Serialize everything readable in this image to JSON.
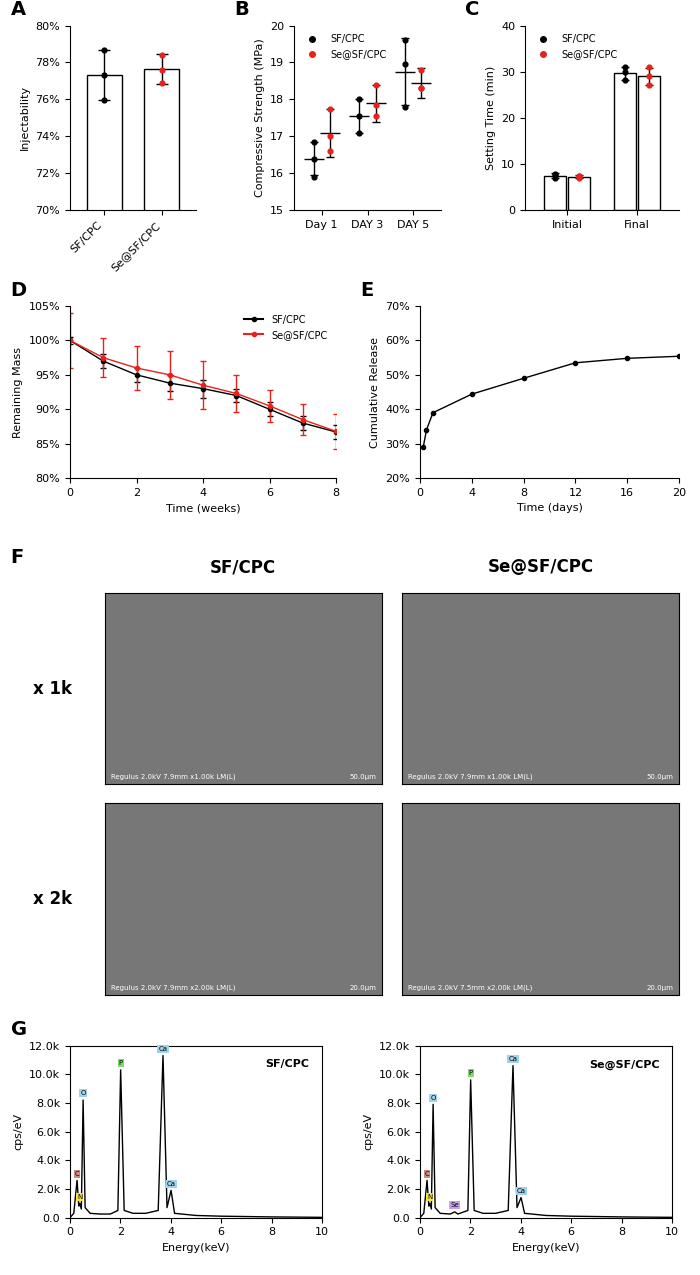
{
  "chart_data": [
    {
      "panel": "A",
      "type": "bar",
      "y_label": "Injectability",
      "categories": [
        "SF/CPC",
        "Se@SF/CPC"
      ],
      "values": [
        77.3,
        77.65
      ],
      "errors": [
        1.35,
        0.8
      ],
      "points": [
        [
          78.7,
          77.3,
          75.95
        ],
        [
          78.4,
          77.6,
          76.9
        ]
      ],
      "colors": [
        "#000000",
        "#e8221b"
      ],
      "ylim": [
        70,
        80
      ],
      "yticks": [
        {
          "value": 70,
          "label": "70%"
        },
        {
          "value": 72,
          "label": "72%"
        },
        {
          "value": 74,
          "label": "74%"
        },
        {
          "value": 76,
          "label": "76%"
        },
        {
          "value": 78,
          "label": "78%"
        },
        {
          "value": 80,
          "label": "80%"
        }
      ]
    },
    {
      "panel": "B",
      "type": "scatter",
      "y_label": "Compressive Strength (MPa)",
      "legend": "upper left",
      "categories": [
        "Day 1",
        "DAY 3",
        "DAY 5"
      ],
      "series": [
        {
          "name": "SF/CPC",
          "color": "#000000",
          "values": [
            16.4,
            17.55,
            18.75
          ],
          "errors": [
            0.45,
            0.45,
            0.9
          ],
          "points": [
            [
              16.85,
              16.4,
              15.9
            ],
            [
              18.0,
              17.55,
              17.1
            ],
            [
              19.6,
              18.95,
              17.8
            ]
          ]
        },
        {
          "name": "Se@SF/CPC",
          "color": "#e8221b",
          "values": [
            17.1,
            17.9,
            18.45
          ],
          "errors": [
            0.65,
            0.5,
            0.4
          ],
          "points": [
            [
              17.75,
              17.0,
              16.6
            ],
            [
              18.4,
              17.85,
              17.55
            ],
            [
              18.8,
              18.3,
              18.3
            ]
          ]
        }
      ],
      "ylim": [
        15,
        20
      ],
      "yticks": [
        15,
        16,
        17,
        18,
        19,
        20
      ]
    },
    {
      "panel": "C",
      "type": "bar",
      "y_label": "Setting Time (min)",
      "legend": "upper left",
      "categories": [
        "Initial",
        "Final"
      ],
      "series": [
        {
          "name": "SF/CPC",
          "color": "#000000",
          "values": [
            7.5,
            29.7
          ],
          "errors": [
            0.5,
            1.4
          ],
          "points": [
            [
              7.1,
              7.7,
              7.8
            ],
            [
              28.3,
              30.0,
              31.0
            ]
          ]
        },
        {
          "name": "Se@SF/CPC",
          "color": "#e8221b",
          "values": [
            7.3,
            29.0
          ],
          "errors": [
            0.25,
            1.8
          ],
          "points": [
            [
              7.1,
              7.4,
              7.5
            ],
            [
              27.2,
              29.0,
              31.0
            ]
          ]
        }
      ],
      "ylim": [
        0,
        40
      ],
      "yticks": [
        0,
        10,
        20,
        30,
        40
      ]
    },
    {
      "panel": "D",
      "type": "line",
      "x_label": "Time (weeks)",
      "y_label": "Remaining Mass",
      "legend": "upper right",
      "x": [
        0,
        1,
        2,
        3,
        4,
        5,
        6,
        7,
        8
      ],
      "series": [
        {
          "name": "SF/CPC",
          "color": "#000000",
          "marker": "o",
          "values": [
            100,
            97.0,
            95.0,
            93.8,
            93.0,
            92.0,
            90.0,
            88.0,
            86.7
          ],
          "errors": [
            0.5,
            1.0,
            1.0,
            1.2,
            1.3,
            1.0,
            1.0,
            1.0,
            1.0
          ]
        },
        {
          "name": "Se@SF/CPC",
          "color": "#e8221b",
          "marker": "o",
          "values": [
            100,
            97.5,
            96.0,
            95.0,
            93.5,
            92.3,
            90.5,
            88.5,
            86.8
          ],
          "errors": [
            4.0,
            2.8,
            3.2,
            3.5,
            3.5,
            2.7,
            2.3,
            2.3,
            2.5
          ]
        }
      ],
      "xlim": [
        0,
        8
      ],
      "xticks": [
        0,
        2,
        4,
        6,
        8
      ],
      "ylim": [
        80,
        105
      ],
      "yticks": [
        {
          "value": 80,
          "label": "80%"
        },
        {
          "value": 85,
          "label": "85%"
        },
        {
          "value": 90,
          "label": "90%"
        },
        {
          "value": 95,
          "label": "95%"
        },
        {
          "value": 100,
          "label": "100%"
        },
        {
          "value": 105,
          "label": "105%"
        }
      ]
    },
    {
      "panel": "E",
      "type": "line",
      "x_label": "Time (days)",
      "y_label": "Cumulative Release",
      "x": [
        0.25,
        0.5,
        1,
        4,
        8,
        12,
        16,
        20
      ],
      "values": [
        29.0,
        34.0,
        39.0,
        44.4,
        49.0,
        53.5,
        54.8,
        55.4
      ],
      "color": "#000000",
      "marker": "o",
      "xlim": [
        0,
        20
      ],
      "xticks": [
        0,
        4,
        8,
        12,
        16,
        20
      ],
      "ylim": [
        20,
        70
      ],
      "yticks": [
        {
          "value": 20,
          "label": "20%"
        },
        {
          "value": 30,
          "label": "30%"
        },
        {
          "value": 40,
          "label": "40%"
        },
        {
          "value": 50,
          "label": "50%"
        },
        {
          "value": 60,
          "label": "60%"
        },
        {
          "value": 70,
          "label": "70%"
        }
      ]
    },
    {
      "panel": "G",
      "type": "line",
      "title": "SF/CPC",
      "x_label": "Energy(keV)",
      "y_label": "cps/eV",
      "color": "#000000",
      "x": [
        0,
        0.15,
        0.28,
        0.35,
        0.39,
        0.45,
        0.52,
        0.6,
        0.8,
        1.2,
        1.6,
        1.9,
        2.01,
        2.15,
        2.5,
        3.0,
        3.5,
        3.69,
        3.85,
        4.01,
        4.15,
        5,
        6,
        8,
        10
      ],
      "values": [
        0,
        300,
        2600,
        800,
        1000,
        600,
        8200,
        700,
        300,
        250,
        250,
        500,
        10300,
        500,
        300,
        300,
        500,
        11300,
        700,
        1900,
        300,
        150,
        100,
        50,
        20
      ],
      "peak_labels": [
        {
          "label": "C",
          "x": 0.28,
          "y": 2600,
          "color": "#c98b7a"
        },
        {
          "label": "N",
          "x": 0.39,
          "y": 1000,
          "color": "#f5e04a"
        },
        {
          "label": "O",
          "x": 0.52,
          "y": 8200,
          "color": "#9fd3ea"
        },
        {
          "label": "P",
          "x": 2.01,
          "y": 10300,
          "color": "#7fdc6a"
        },
        {
          "label": "Ca",
          "x": 3.69,
          "y": 11300,
          "color": "#9fd3ea"
        },
        {
          "label": "Ca",
          "x": 4.01,
          "y": 1900,
          "color": "#9fd3ea"
        }
      ],
      "xlim": [
        0,
        10
      ],
      "xticks": [
        0,
        2,
        4,
        6,
        8,
        10
      ],
      "ylim": [
        0,
        12000
      ],
      "yticks": [
        {
          "value": 0,
          "label": "0.0"
        },
        {
          "value": 2000,
          "label": "2.0k"
        },
        {
          "value": 4000,
          "label": "4.0k"
        },
        {
          "value": 6000,
          "label": "6.0k"
        },
        {
          "value": 8000,
          "label": "8.0k"
        },
        {
          "value": 10000,
          "label": "10.0k"
        },
        {
          "value": 12000,
          "label": "12.0k"
        }
      ]
    },
    {
      "panel": null,
      "type": "line",
      "title": "Se@SF/CPC",
      "x_label": "Energy(keV)",
      "y_label": "cps/eV",
      "color": "#000000",
      "x": [
        0,
        0.15,
        0.28,
        0.35,
        0.39,
        0.45,
        0.52,
        0.6,
        0.8,
        1.2,
        1.38,
        1.5,
        1.9,
        2.01,
        2.15,
        2.5,
        3.0,
        3.5,
        3.69,
        3.85,
        4.01,
        4.15,
        5,
        6,
        8,
        10
      ],
      "values": [
        0,
        300,
        2600,
        800,
        1000,
        600,
        7900,
        700,
        300,
        250,
        400,
        250,
        500,
        9600,
        500,
        300,
        300,
        500,
        10600,
        700,
        1400,
        300,
        150,
        100,
        50,
        20
      ],
      "peak_labels": [
        {
          "label": "C",
          "x": 0.28,
          "y": 2600,
          "color": "#c98b7a"
        },
        {
          "label": "N",
          "x": 0.39,
          "y": 1000,
          "color": "#f5e04a"
        },
        {
          "label": "O",
          "x": 0.52,
          "y": 7900,
          "color": "#9fd3ea"
        },
        {
          "label": "Se",
          "x": 1.38,
          "y": 400,
          "color": "#c9a0f0"
        },
        {
          "label": "P",
          "x": 2.01,
          "y": 9600,
          "color": "#7fdc6a"
        },
        {
          "label": "Ca",
          "x": 3.69,
          "y": 10600,
          "color": "#9fd3ea"
        },
        {
          "label": "Ca",
          "x": 4.01,
          "y": 1400,
          "color": "#9fd3ea"
        }
      ],
      "xlim": [
        0,
        10
      ],
      "xticks": [
        0,
        2,
        4,
        6,
        8,
        10
      ],
      "ylim": [
        0,
        12000
      ],
      "yticks": [
        {
          "value": 0,
          "label": "0.0"
        },
        {
          "value": 2000,
          "label": "2.0k"
        },
        {
          "value": 4000,
          "label": "4.0k"
        },
        {
          "value": 6000,
          "label": "6.0k"
        },
        {
          "value": 8000,
          "label": "8.0k"
        },
        {
          "value": 10000,
          "label": "10.0k"
        },
        {
          "value": 12000,
          "label": "12.0k"
        }
      ]
    }
  ],
  "images": {
    "panel": "F",
    "columns": [
      "SF/CPC",
      "Se@SF/CPC"
    ],
    "rows": [
      "x 1k",
      "x 2k"
    ],
    "cells": [
      [
        {
          "caption": "Regulus 2.0kV 7.9mm x1.00k LM(L)",
          "scale": "50.0µm"
        },
        {
          "caption": "Regulus 2.0kV 7.9mm x1.00k LM(L)",
          "scale": "50.0µm"
        }
      ],
      [
        {
          "caption": "Regulus 2.0kV 7.9mm x2.00k LM(L)",
          "scale": "20.0µm"
        },
        {
          "caption": "Regulus 2.0kV 7.5mm x2.00k LM(L)",
          "scale": "20.0µm"
        }
      ]
    ]
  }
}
